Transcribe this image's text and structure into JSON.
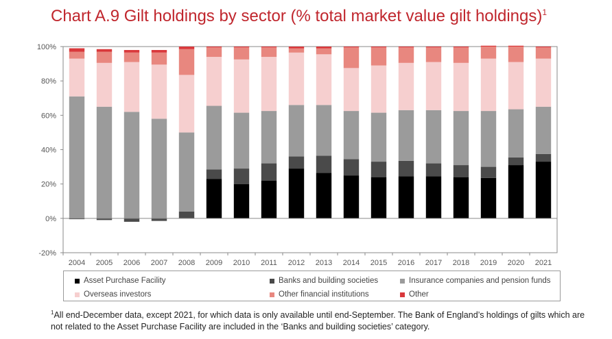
{
  "title_main": "Chart A.9 Gilt holdings by sector (% total market value gilt holdings)",
  "title_sup": "1",
  "footnote_sup": "1",
  "footnote_text": "All end-December data, except 2021, for which data is only available until end-September. The Bank of England’s holdings of gilts which are not related to the Asset Purchase Facility are included in the ‘Banks and building societies’ category.",
  "chart_data": {
    "type": "bar",
    "stacked": true,
    "categories": [
      "2004",
      "2005",
      "2006",
      "2007",
      "2008",
      "2009",
      "2010",
      "2011",
      "2012",
      "2013",
      "2014",
      "2015",
      "2016",
      "2017",
      "2018",
      "2019",
      "2020",
      "2021"
    ],
    "ylim": [
      -20,
      100
    ],
    "yticks": [
      "-20%",
      "0%",
      "20%",
      "40%",
      "60%",
      "80%",
      "100%"
    ],
    "ytick_values": [
      -20,
      0,
      20,
      40,
      60,
      80,
      100
    ],
    "grid": false,
    "legend_position": "bottom",
    "series": [
      {
        "name": "Asset Purchase Facility",
        "color": "#000000",
        "values": [
          0,
          0,
          0,
          0,
          0,
          23,
          20,
          22,
          29,
          26.5,
          25,
          24,
          24.5,
          24.5,
          24,
          23.5,
          31,
          33
        ]
      },
      {
        "name": "Banks and building societies",
        "color": "#4a4a4a",
        "values": [
          -0.5,
          -1,
          -2,
          -1.5,
          4,
          5.5,
          9,
          10,
          7,
          10,
          9.5,
          9,
          9,
          7.5,
          7,
          6.5,
          4.5,
          4.5
        ]
      },
      {
        "name": "Insurance companies and pension funds",
        "color": "#9b9b9b",
        "values": [
          71,
          65,
          62,
          58,
          46,
          37,
          32.5,
          30.5,
          30,
          29.5,
          28,
          28.5,
          29.5,
          31,
          31.5,
          32.5,
          28,
          27.5
        ]
      },
      {
        "name": "Overseas investors",
        "color": "#f6cfcf",
        "values": [
          22,
          25.5,
          29,
          31.5,
          33.5,
          28.5,
          31,
          31.5,
          30.5,
          29.5,
          25,
          27.5,
          27.5,
          28,
          28,
          30.5,
          27.5,
          28
        ]
      },
      {
        "name": "Other financial institutions",
        "color": "#e8877f",
        "values": [
          4,
          6.5,
          5.5,
          7,
          15,
          5.5,
          7,
          5.5,
          2.5,
          3.5,
          12,
          10.5,
          9,
          8.5,
          9,
          7,
          9,
          6.5
        ]
      },
      {
        "name": "Other",
        "color": "#d9383b",
        "values": [
          2,
          1.5,
          1.5,
          1.5,
          1.5,
          0.5,
          0.5,
          0.5,
          1,
          1,
          0.5,
          0.5,
          0.5,
          0.5,
          0.5,
          0.5,
          0.5,
          0.5
        ]
      }
    ]
  }
}
